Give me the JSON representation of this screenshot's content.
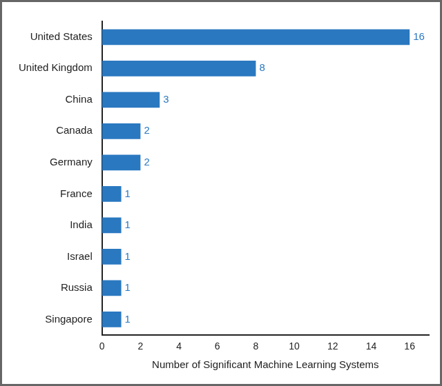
{
  "chart_data": {
    "type": "bar",
    "orientation": "horizontal",
    "xlabel": "Number of Significant Machine Learning Systems",
    "categories": [
      "United States",
      "United Kingdom",
      "China",
      "Canada",
      "Germany",
      "France",
      "India",
      "Israel",
      "Russia",
      "Singapore"
    ],
    "values": [
      16,
      8,
      3,
      2,
      2,
      1,
      1,
      1,
      1,
      1
    ],
    "color": "#2a78c0",
    "xlim": [
      0,
      17
    ],
    "xticks": [
      0,
      2,
      4,
      6,
      8,
      10,
      12,
      14,
      16
    ],
    "grid": false,
    "data_labels": true
  }
}
